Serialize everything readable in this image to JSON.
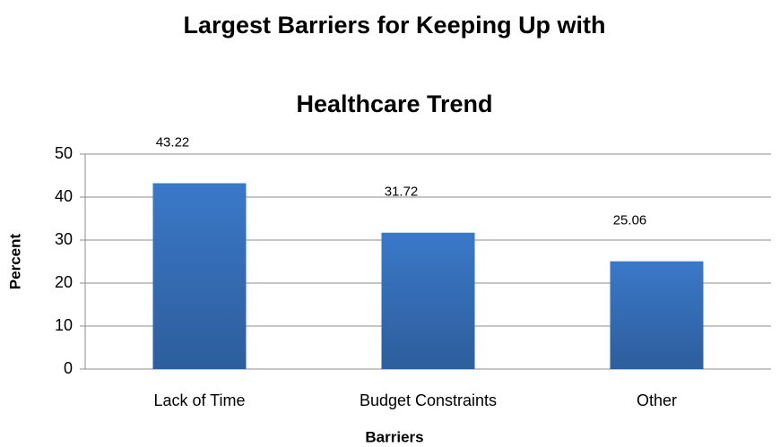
{
  "chart_data": {
    "type": "bar",
    "title": [
      "Largest Barriers for Keeping Up with",
      "Healthcare Trend"
    ],
    "x_label": "Barriers",
    "y_label": "Percent",
    "categories": [
      "Lack of Time",
      "Budget Constraints",
      "Other"
    ],
    "values": [
      43.22,
      31.72,
      25.06
    ],
    "color": "#3a78c8",
    "ylim": [
      0,
      50
    ],
    "yticks": [
      0,
      10,
      20,
      30,
      40,
      50
    ],
    "grid": true
  }
}
